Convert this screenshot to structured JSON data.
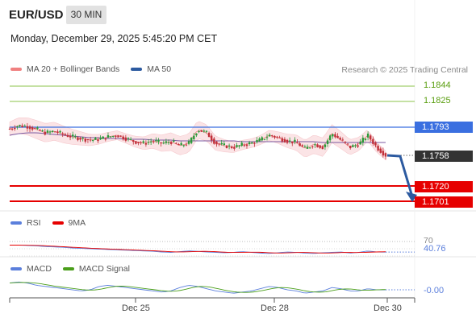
{
  "header": {
    "pair": "EUR/USD",
    "timeframe": "30 MIN",
    "datetime": "Monday, December 29, 2025 5:45:20 PM CET"
  },
  "legend_main": [
    {
      "label": "MA 20 + Bollinger Bands",
      "color": "#f08080"
    },
    {
      "label": "MA 50",
      "color": "#2c5aa0"
    }
  ],
  "credit": "Research © 2025 Trading Central",
  "colors": {
    "resistance": "#8bc34a",
    "resistance_text": "#5a9e10",
    "pivot": "#3a6fe0",
    "support": "#e60000",
    "last": "#333333",
    "up_candle": "#2a9a3a",
    "down_candle": "#c0303a",
    "bands": "#fbe4e6",
    "arrow": "#2c5aa0"
  },
  "levels": {
    "r2": "1.1844",
    "r1": "1.1825",
    "pivot": "1.1793",
    "last": "1.1758",
    "s1": "1.1720",
    "s2": "1.1701"
  },
  "rsi": {
    "legend": [
      {
        "label": "RSI",
        "color": "#5b7fdc"
      },
      {
        "label": "9MA",
        "color": "#e60000"
      }
    ],
    "level": "70",
    "value": "40.76"
  },
  "macd": {
    "legend": [
      {
        "label": "MACD",
        "color": "#5b7fdc"
      },
      {
        "label": "MACD Signal",
        "color": "#4a9e1a"
      }
    ],
    "value": "-0.00"
  },
  "chart_data": {
    "type": "line",
    "x_tick_labels": [
      "Dec 25",
      "Dec 28",
      "Dec 30"
    ],
    "y_range": [
      1.169,
      1.1855
    ],
    "price_path": [
      1.1791,
      1.1795,
      1.1794,
      1.179,
      1.1786,
      1.1788,
      1.1784,
      1.1781,
      1.1779,
      1.1777,
      1.1778,
      1.1781,
      1.1783,
      1.1779,
      1.1775,
      1.1773,
      1.1776,
      1.1773,
      1.1775,
      1.177,
      1.1773,
      1.179,
      1.1786,
      1.1773,
      1.177,
      1.1768,
      1.1771,
      1.1773,
      1.1777,
      1.1783,
      1.178,
      1.1776,
      1.1774,
      1.1766,
      1.1772,
      1.1768,
      1.1785,
      1.1777,
      1.1768,
      1.1772,
      1.1783,
      1.1768,
      1.1758
    ],
    "ma50": [
      1.1783,
      1.1785,
      1.1786,
      1.1786,
      1.1785,
      1.1784,
      1.1783,
      1.1782,
      1.1781,
      1.178,
      1.178,
      1.1779,
      1.1779,
      1.1778,
      1.1778,
      1.1778,
      1.1777,
      1.1777,
      1.1777,
      1.1776,
      1.1776,
      1.1776,
      1.1776,
      1.1776,
      1.1776,
      1.1776,
      1.1775,
      1.1775,
      1.1775,
      1.1775,
      1.1775,
      1.1775,
      1.1775,
      1.1775,
      1.1775,
      1.1774,
      1.1774,
      1.1774,
      1.1774,
      1.1774,
      1.1774,
      1.1774,
      1.1774
    ],
    "rsi_values": [
      60,
      60,
      59,
      58,
      56,
      55,
      54,
      52,
      51,
      50,
      49,
      48,
      47,
      46,
      45,
      44,
      43,
      41,
      40,
      42,
      44,
      43,
      41,
      40,
      39,
      40,
      42,
      40,
      38,
      37,
      39,
      41,
      40,
      38,
      37,
      39,
      40,
      41,
      38,
      40,
      44,
      41,
      40.76
    ],
    "macd_values": [
      0.0006,
      0.0007,
      0.0006,
      0.0004,
      0.0003,
      0.0002,
      0.0001,
      0.0,
      -0.0001,
      0.0,
      0.0003,
      0.0004,
      0.0003,
      0.0002,
      0.0001,
      0.0,
      -0.0001,
      -0.0002,
      -0.0001,
      0.0002,
      0.0004,
      0.0003,
      0.0001,
      -0.0001,
      -0.0002,
      -0.0003,
      -0.0002,
      -0.0001,
      0.0001,
      0.0003,
      0.0002,
      0.0,
      -0.0001,
      -0.0003,
      -0.0002,
      -0.0001,
      0.0002,
      0.0001,
      -0.0001,
      -0.0001,
      0.0001,
      0.0,
      0.0
    ]
  }
}
